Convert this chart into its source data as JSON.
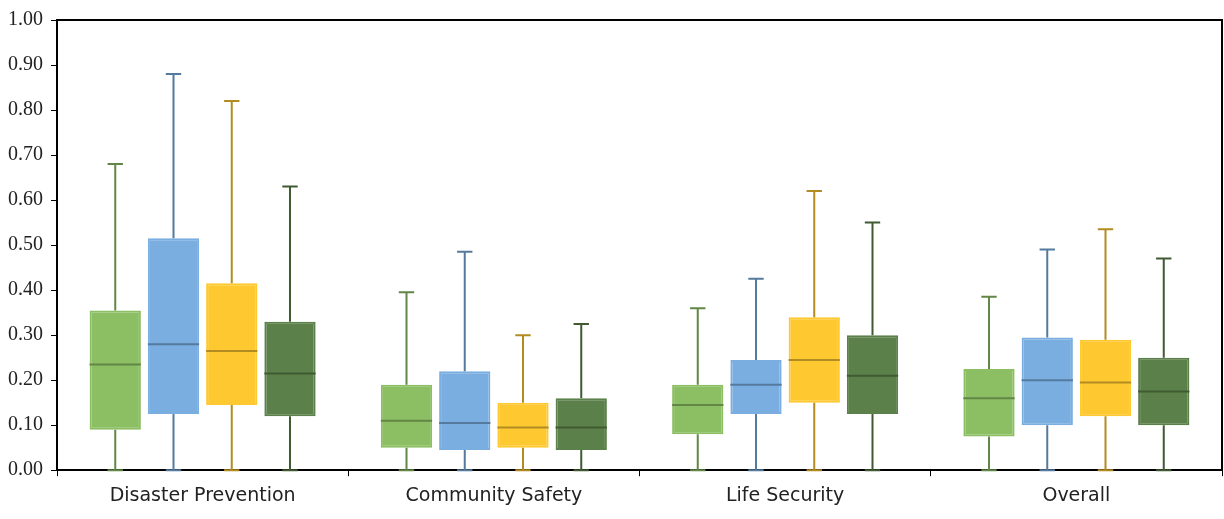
{
  "chart_data": {
    "type": "box",
    "categories": [
      "Disaster Prevention",
      "Community Safety",
      "Life Security",
      "Overall"
    ],
    "ylim": [
      0,
      1
    ],
    "yticks": [
      {
        "value": 0,
        "label": "0.00"
      },
      {
        "value": 0.1,
        "label": "0.10"
      },
      {
        "value": 0.2,
        "label": "0.20"
      },
      {
        "value": 0.3,
        "label": "0.30"
      },
      {
        "value": 0.4,
        "label": "0.40"
      },
      {
        "value": 0.5,
        "label": "0.50"
      },
      {
        "value": 0.6,
        "label": "0.60"
      },
      {
        "value": 0.7,
        "label": "0.70"
      },
      {
        "value": 0.8,
        "label": "0.80"
      },
      {
        "value": 0.9,
        "label": "0.90"
      },
      {
        "value": 1,
        "label": "1.00"
      }
    ],
    "grid": false,
    "legend": false,
    "series": [
      {
        "color": "#8cbf63",
        "boxes": [
          {
            "low": 0,
            "q1": 0.09,
            "median": 0.235,
            "q3": 0.355,
            "high": 0.68
          },
          {
            "low": 0,
            "q1": 0.05,
            "median": 0.11,
            "q3": 0.19,
            "high": 0.395
          },
          {
            "low": 0,
            "q1": 0.08,
            "median": 0.145,
            "q3": 0.19,
            "high": 0.36
          },
          {
            "low": 0,
            "q1": 0.075,
            "median": 0.16,
            "q3": 0.225,
            "high": 0.385
          }
        ]
      },
      {
        "color": "#7aaee0",
        "boxes": [
          {
            "low": 0,
            "q1": 0.125,
            "median": 0.28,
            "q3": 0.515,
            "high": 0.88
          },
          {
            "low": 0,
            "q1": 0.045,
            "median": 0.105,
            "q3": 0.22,
            "high": 0.485
          },
          {
            "low": 0,
            "q1": 0.125,
            "median": 0.19,
            "q3": 0.245,
            "high": 0.425
          },
          {
            "low": 0,
            "q1": 0.1,
            "median": 0.2,
            "q3": 0.295,
            "high": 0.49
          }
        ]
      },
      {
        "color": "#fec830",
        "boxes": [
          {
            "low": 0,
            "q1": 0.145,
            "median": 0.265,
            "q3": 0.415,
            "high": 0.82
          },
          {
            "low": 0,
            "q1": 0.05,
            "median": 0.095,
            "q3": 0.15,
            "high": 0.3
          },
          {
            "low": 0,
            "q1": 0.15,
            "median": 0.245,
            "q3": 0.34,
            "high": 0.62
          },
          {
            "low": 0,
            "q1": 0.12,
            "median": 0.195,
            "q3": 0.29,
            "high": 0.535
          }
        ]
      },
      {
        "color": "#5b8049",
        "boxes": [
          {
            "low": 0,
            "q1": 0.12,
            "median": 0.215,
            "q3": 0.33,
            "high": 0.63
          },
          {
            "low": 0,
            "q1": 0.045,
            "median": 0.095,
            "q3": 0.16,
            "high": 0.325
          },
          {
            "low": 0,
            "q1": 0.125,
            "median": 0.21,
            "q3": 0.3,
            "high": 0.55
          },
          {
            "low": 0,
            "q1": 0.1,
            "median": 0.175,
            "q3": 0.25,
            "high": 0.47
          }
        ]
      }
    ]
  }
}
